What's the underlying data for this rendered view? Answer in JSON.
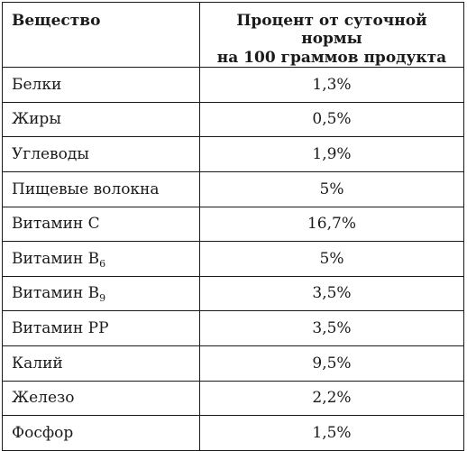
{
  "table": {
    "headers": {
      "substance": "Вещество",
      "percent_line1": "Процент от суточной нормы",
      "percent_line2": "на 100 граммов продукта"
    },
    "rows": [
      {
        "name": "Белки",
        "sub": "",
        "value": "1,3%"
      },
      {
        "name": "Жиры",
        "sub": "",
        "value": "0,5%"
      },
      {
        "name": "Углеводы",
        "sub": "",
        "value": "1,9%"
      },
      {
        "name": "Пищевые волокна",
        "sub": "",
        "value": "5%"
      },
      {
        "name": "Витамин С",
        "sub": "",
        "value": "16,7%"
      },
      {
        "name": "Витамин В",
        "sub": "6",
        "value": "5%"
      },
      {
        "name": "Витамин В",
        "sub": "9",
        "value": "3,5%"
      },
      {
        "name": "Витамин РР",
        "sub": "",
        "value": "3,5%"
      },
      {
        "name": "Калий",
        "sub": "",
        "value": "9,5%"
      },
      {
        "name": "Железо",
        "sub": "",
        "value": "2,2%"
      },
      {
        "name": "Фосфор",
        "sub": "",
        "value": "1,5%"
      }
    ]
  }
}
